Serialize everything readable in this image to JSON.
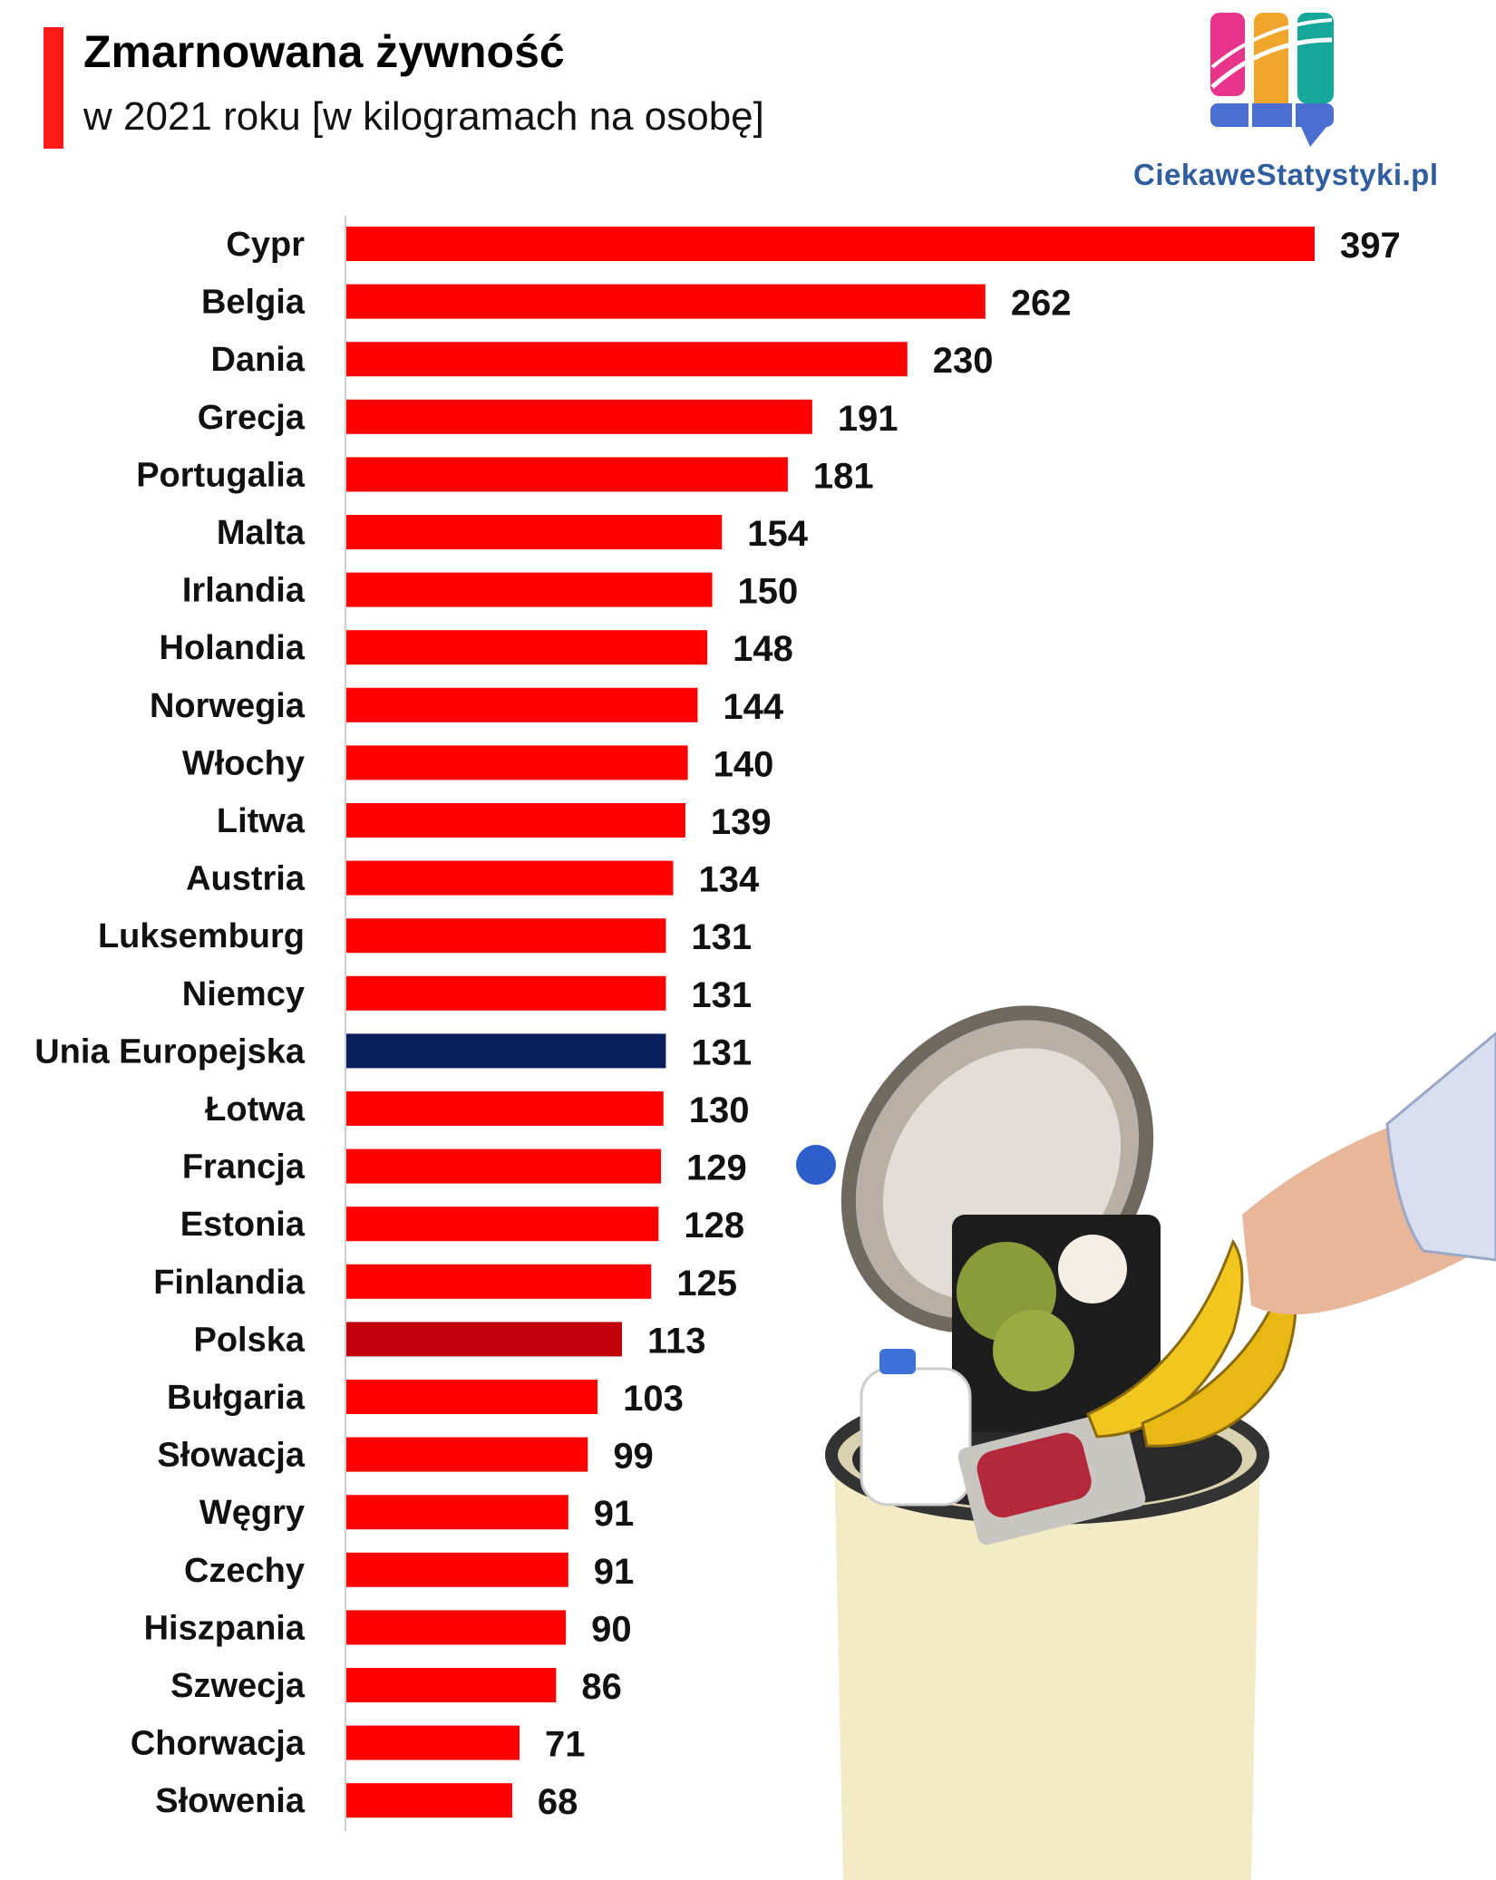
{
  "header": {
    "title": "Zmarnowana żywność",
    "subtitle": "w 2021 roku [w kilogramach na osobę]",
    "brand": "CiekaweStatystyki.pl"
  },
  "colors": {
    "bar": "#ff0000",
    "highlight_eu": "#0a1f5c",
    "highlight_pl": "#c0000a",
    "accent": "#ff1a1a"
  },
  "chart_data": {
    "type": "bar",
    "orientation": "horizontal",
    "title": "Zmarnowana żywność",
    "subtitle": "w 2021 roku [w kilogramach na osobę]",
    "categories": [
      "Cypr",
      "Belgia",
      "Dania",
      "Grecja",
      "Portugalia",
      "Malta",
      "Irlandia",
      "Holandia",
      "Norwegia",
      "Włochy",
      "Litwa",
      "Austria",
      "Luksemburg",
      "Niemcy",
      "Unia Europejska",
      "Łotwa",
      "Francja",
      "Estonia",
      "Finlandia",
      "Polska",
      "Bułgaria",
      "Słowacja",
      "Węgry",
      "Czechy",
      "Hiszpania",
      "Szwecja",
      "Chorwacja",
      "Słowenia"
    ],
    "values": [
      397,
      262,
      230,
      191,
      181,
      154,
      150,
      148,
      144,
      140,
      139,
      134,
      131,
      131,
      131,
      130,
      129,
      128,
      125,
      113,
      103,
      99,
      91,
      91,
      90,
      86,
      71,
      68
    ],
    "highlighted": {
      "Unia Europejska": "#0a1f5c",
      "Polska": "#c0000a"
    },
    "xlim": [
      0,
      397
    ],
    "grid": false,
    "legend": "none"
  }
}
